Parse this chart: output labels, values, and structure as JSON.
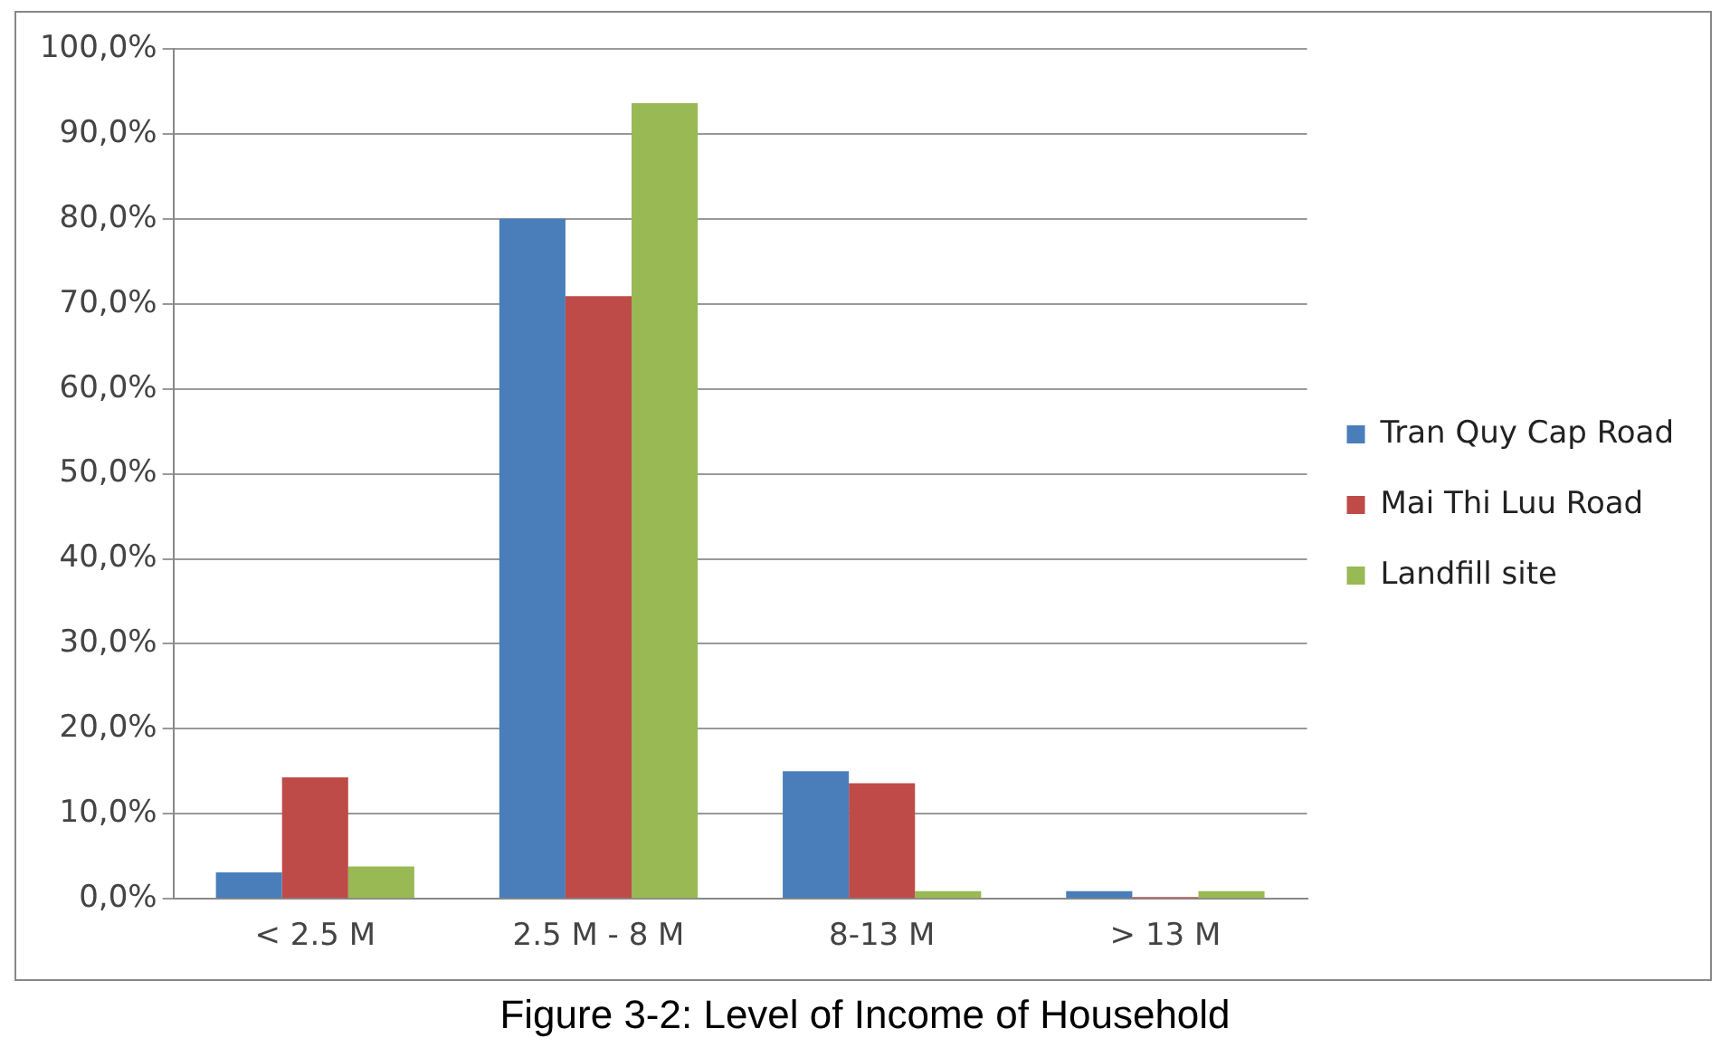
{
  "chart_data": {
    "type": "bar",
    "categories": [
      "< 2.5 M",
      "2.5 M - 8 M",
      "8-13 M",
      "> 13 M"
    ],
    "series": [
      {
        "name": "Tran Quy Cap Road",
        "color": "#4a7ebb",
        "values": [
          3.1,
          80.0,
          15.0,
          0.9
        ]
      },
      {
        "name": "Mai Thi Luu Road",
        "color": "#be4b48",
        "values": [
          14.3,
          70.9,
          13.6,
          0.2
        ]
      },
      {
        "name": "Landfill site",
        "color": "#98b954",
        "values": [
          3.8,
          93.6,
          0.9,
          0.9
        ]
      }
    ],
    "ylim": [
      0,
      100
    ],
    "yticks": [
      {
        "value": 0,
        "label": "0,0%"
      },
      {
        "value": 10,
        "label": "10,0%"
      },
      {
        "value": 20,
        "label": "20,0%"
      },
      {
        "value": 30,
        "label": "30,0%"
      },
      {
        "value": 40,
        "label": "40,0%"
      },
      {
        "value": 50,
        "label": "50,0%"
      },
      {
        "value": 60,
        "label": "60,0%"
      },
      {
        "value": 70,
        "label": "70,0%"
      },
      {
        "value": 80,
        "label": "80,0%"
      },
      {
        "value": 90,
        "label": "90,0%"
      },
      {
        "value": 100,
        "label": "100,0%"
      }
    ],
    "grid": "y",
    "legend": "right",
    "annotations": [
      "Figure 3-2: Level of Income of Household"
    ]
  }
}
